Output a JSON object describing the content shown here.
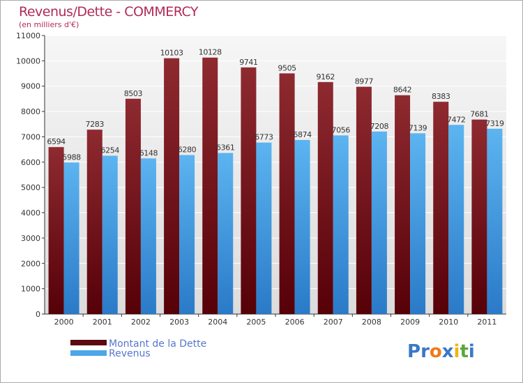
{
  "header": {
    "title": "Revenus/Dette - COMMERCY",
    "subtitle": "(en milliers d'€)"
  },
  "chart_data": {
    "type": "bar",
    "title": "Revenus/Dette - COMMERCY",
    "subtitle": "(en milliers d'€)",
    "xlabel": "",
    "ylabel": "",
    "categories": [
      "2000",
      "2001",
      "2002",
      "2003",
      "2004",
      "2005",
      "2006",
      "2007",
      "2008",
      "2009",
      "2010",
      "2011"
    ],
    "series": [
      {
        "name": "Montant de la Dette",
        "color": "#7a1a22",
        "values": [
          6594,
          7283,
          8503,
          10103,
          10128,
          9741,
          9505,
          9162,
          8977,
          8642,
          8383,
          7681
        ]
      },
      {
        "name": "Revenus",
        "color": "#4da6e8",
        "values": [
          5988,
          6254,
          6148,
          6280,
          6361,
          6773,
          6874,
          7056,
          7208,
          7139,
          7472,
          7319
        ]
      }
    ],
    "yticks": [
      0,
      1000,
      2000,
      3000,
      4000,
      5000,
      6000,
      7000,
      8000,
      9000,
      10000,
      11000
    ],
    "ylim": [
      0,
      11000
    ],
    "grid": true,
    "legend": "bottom-left"
  },
  "legend": {
    "items": [
      {
        "label": "Montant de la Dette",
        "color": "#5a0a10"
      },
      {
        "label": "Revenus",
        "color": "#4da6e8"
      }
    ]
  },
  "logo": {
    "letters": [
      "P",
      "r",
      "o",
      "x",
      "i",
      "t",
      "i"
    ],
    "colors": [
      "#3a78c8",
      "#3a78c8",
      "#f07a1a",
      "#3a78c8",
      "#f2b21a",
      "#5aa83a",
      "#3a78c8"
    ]
  }
}
